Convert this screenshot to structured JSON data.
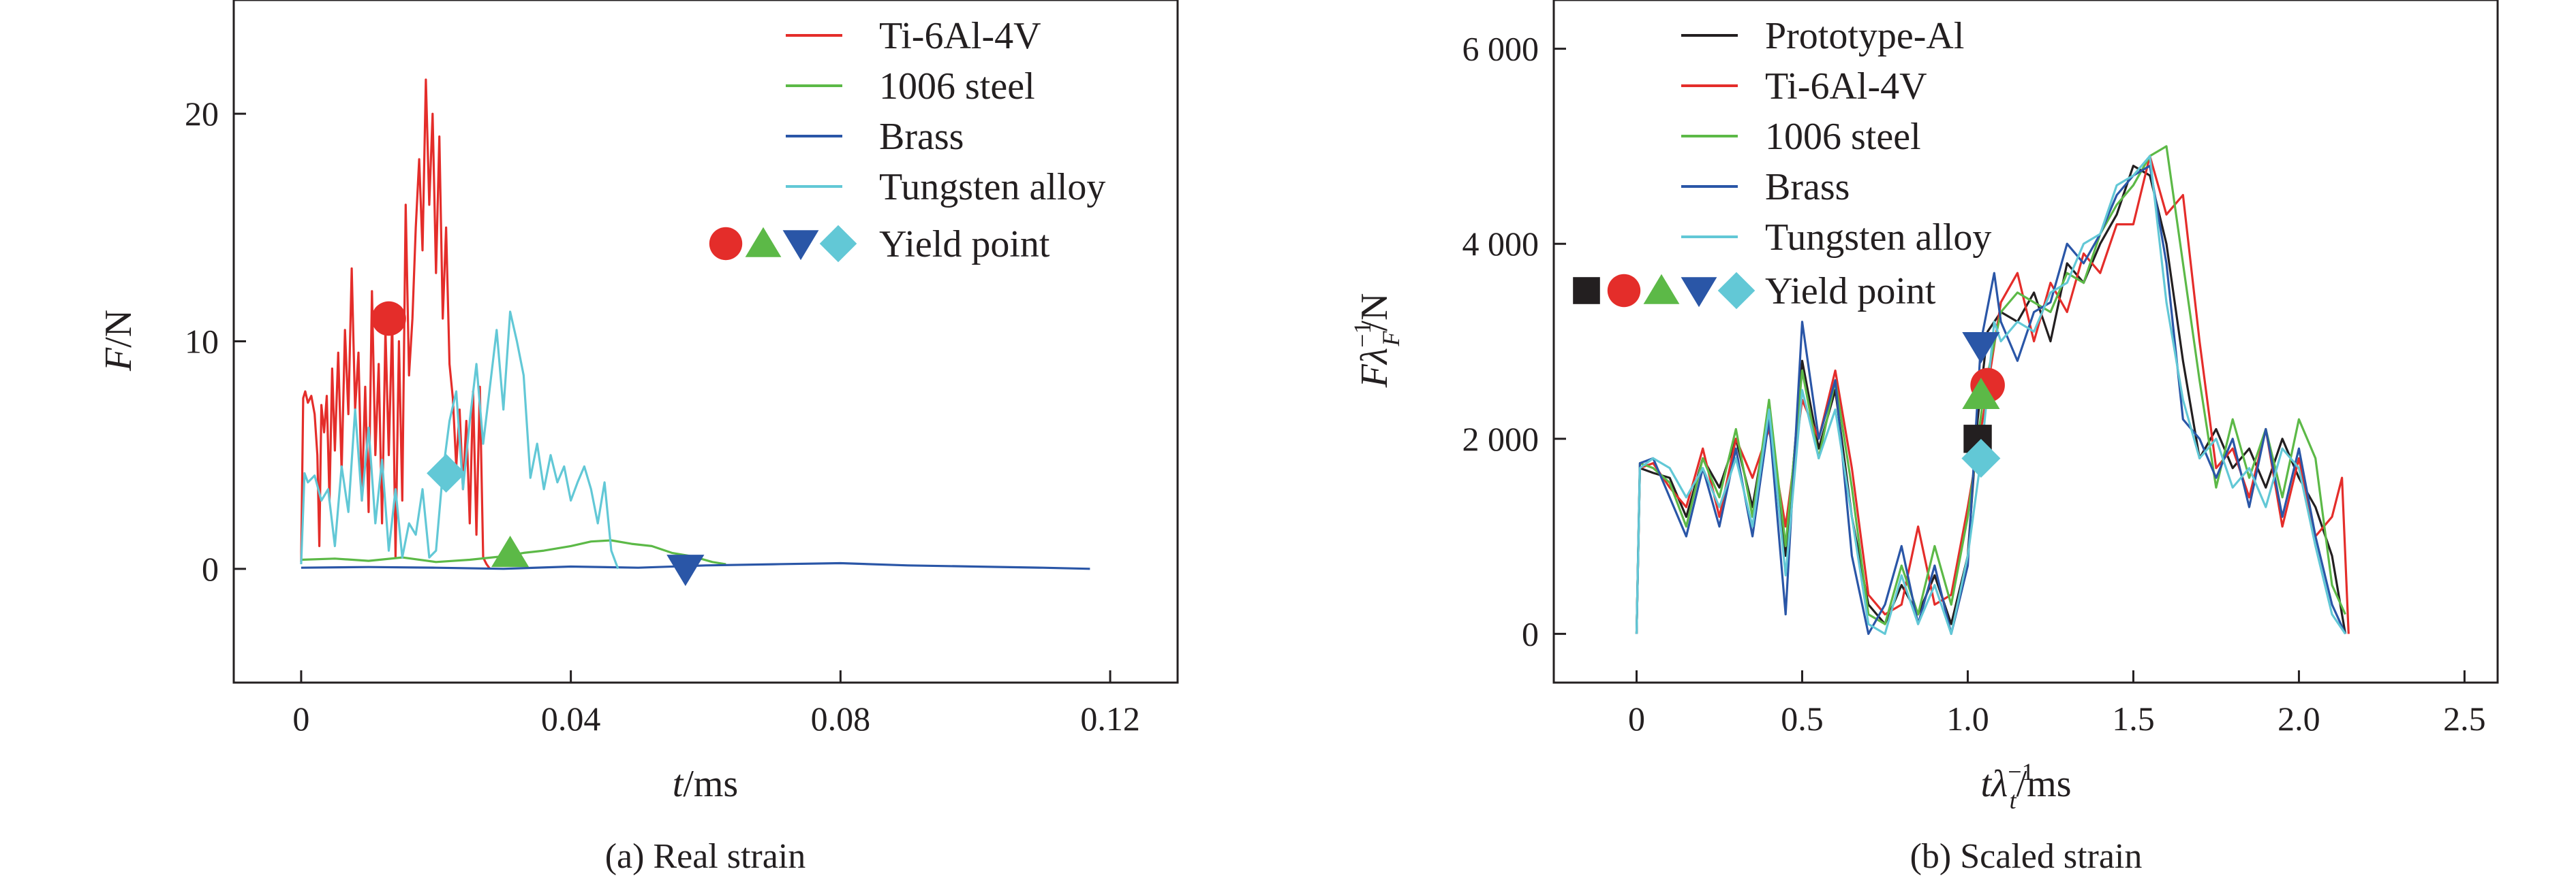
{
  "colors": {
    "Prototype-Al": "#231f20",
    "Ti-6Al-4V": "#e42d2a",
    "1006 steel": "#5cb947",
    "Brass": "#2a56a7",
    "Tungsten alloy": "#62c8d6"
  },
  "chart_data": [
    {
      "type": "line",
      "caption": "(a) Real strain",
      "xlabel": "t/ms",
      "ylabel": "F/N",
      "xlim": [
        -0.01,
        0.13
      ],
      "ylim": [
        -5,
        25
      ],
      "xticks": [
        0,
        0.04,
        0.08,
        0.12
      ],
      "xtick_labels": [
        "0",
        "0.04",
        "0.08",
        "0.12"
      ],
      "yticks": [
        0,
        10,
        20
      ],
      "ytick_labels": [
        "0",
        "10",
        "20"
      ],
      "legend_position": "top-right",
      "yield_label": "Yield point",
      "series": [
        {
          "name": "Ti-6Al-4V",
          "marker": "circle",
          "x": [
            0.0,
            0.0003,
            0.0006,
            0.001,
            0.0015,
            0.002,
            0.0024,
            0.0027,
            0.003,
            0.0034,
            0.0038,
            0.0042,
            0.0046,
            0.005,
            0.0055,
            0.006,
            0.0065,
            0.007,
            0.0075,
            0.008,
            0.0085,
            0.009,
            0.0095,
            0.01,
            0.0105,
            0.011,
            0.0115,
            0.012,
            0.0125,
            0.013,
            0.0135,
            0.014,
            0.0145,
            0.015,
            0.0155,
            0.016,
            0.0165,
            0.017,
            0.0175,
            0.018,
            0.0185,
            0.019,
            0.0195,
            0.02,
            0.0205,
            0.021,
            0.0215,
            0.022,
            0.0225,
            0.023,
            0.0235,
            0.024,
            0.0245,
            0.025,
            0.0255,
            0.026,
            0.0265,
            0.027,
            0.0275,
            0.028
          ],
          "y": [
            0.3,
            7.5,
            7.8,
            7.3,
            7.6,
            6.8,
            5.0,
            1.0,
            7.2,
            6.0,
            7.6,
            3.0,
            8.8,
            5.2,
            9.5,
            4.3,
            10.5,
            6.8,
            13.2,
            7.0,
            9.5,
            3.0,
            8.0,
            2.5,
            12.2,
            5.0,
            9.0,
            2.0,
            10.5,
            5.0,
            11.0,
            0.5,
            10.0,
            3.0,
            16.0,
            8.5,
            11.0,
            15.0,
            18.0,
            14.0,
            21.5,
            16.0,
            20.0,
            13.0,
            19.0,
            11.0,
            15.0,
            9.0,
            7.5,
            4.5,
            7.0,
            3.5,
            6.5,
            2.0,
            7.8,
            1.5,
            8.0,
            0.5,
            0.2,
            0.0
          ],
          "yield_x": 0.013,
          "yield_y": 11.0
        },
        {
          "name": "1006 steel",
          "marker": "triangle-up",
          "x": [
            0.0,
            0.005,
            0.01,
            0.015,
            0.02,
            0.025,
            0.03,
            0.033,
            0.036,
            0.04,
            0.043,
            0.046,
            0.049,
            0.052,
            0.055,
            0.058,
            0.061,
            0.063
          ],
          "y": [
            0.4,
            0.45,
            0.35,
            0.5,
            0.3,
            0.4,
            0.55,
            0.7,
            0.8,
            1.0,
            1.2,
            1.25,
            1.1,
            1.0,
            0.7,
            0.55,
            0.3,
            0.2
          ],
          "yield_x": 0.031,
          "yield_y": 0.7
        },
        {
          "name": "Brass",
          "marker": "triangle-down",
          "x": [
            0.0,
            0.01,
            0.02,
            0.03,
            0.04,
            0.05,
            0.06,
            0.07,
            0.08,
            0.09,
            0.1,
            0.11,
            0.117
          ],
          "y": [
            0.05,
            0.08,
            0.05,
            0.0,
            0.1,
            0.05,
            0.15,
            0.2,
            0.25,
            0.15,
            0.1,
            0.05,
            0.0
          ],
          "yield_x": 0.057,
          "yield_y": 0.0
        },
        {
          "name": "Tungsten alloy",
          "marker": "diamond",
          "x": [
            0.0,
            0.0005,
            0.001,
            0.002,
            0.003,
            0.004,
            0.005,
            0.006,
            0.007,
            0.008,
            0.009,
            0.01,
            0.011,
            0.012,
            0.013,
            0.014,
            0.015,
            0.016,
            0.017,
            0.018,
            0.019,
            0.02,
            0.021,
            0.022,
            0.023,
            0.024,
            0.025,
            0.026,
            0.027,
            0.028,
            0.029,
            0.03,
            0.031,
            0.032,
            0.033,
            0.034,
            0.035,
            0.036,
            0.037,
            0.038,
            0.039,
            0.04,
            0.041,
            0.042,
            0.043,
            0.044,
            0.045,
            0.046,
            0.047
          ],
          "y": [
            0.2,
            4.2,
            3.8,
            4.1,
            3.0,
            3.5,
            1.0,
            4.5,
            2.5,
            7.0,
            3.0,
            6.2,
            2.0,
            4.8,
            0.8,
            3.5,
            0.5,
            2.0,
            1.5,
            3.5,
            0.5,
            0.8,
            4.2,
            6.5,
            7.8,
            3.5,
            6.5,
            9.0,
            5.5,
            8.0,
            10.5,
            7.0,
            11.3,
            10.0,
            8.5,
            4.0,
            5.5,
            3.5,
            5.0,
            3.8,
            4.5,
            3.0,
            3.8,
            4.5,
            3.5,
            2.0,
            3.8,
            0.8,
            0.0
          ],
          "yield_x": 0.0215,
          "yield_y": 4.2
        }
      ]
    },
    {
      "type": "line",
      "caption": "(b) Scaled strain",
      "xlabel": "tλ_t^−1/ms",
      "ylabel": "Fλ_F^−1/N",
      "xlim": [
        -0.25,
        2.6
      ],
      "ylim": [
        -500,
        6500
      ],
      "xticks": [
        0,
        0.5,
        1.0,
        1.5,
        2.0,
        2.5
      ],
      "xtick_labels": [
        "0",
        "0.5",
        "1.0",
        "1.5",
        "2.0",
        "2.5"
      ],
      "yticks": [
        0,
        2000,
        4000,
        6000
      ],
      "ytick_labels": [
        "0",
        "2 000",
        "4 000",
        "6 000"
      ],
      "legend_position": "top-left",
      "yield_label": "Yield point",
      "series": [
        {
          "name": "Prototype-Al",
          "marker": "square",
          "x": [
            0.0,
            0.01,
            0.05,
            0.1,
            0.15,
            0.2,
            0.25,
            0.3,
            0.35,
            0.4,
            0.45,
            0.5,
            0.55,
            0.6,
            0.65,
            0.7,
            0.75,
            0.8,
            0.85,
            0.9,
            0.95,
            1.0,
            1.03,
            1.06,
            1.1,
            1.15,
            1.2,
            1.25,
            1.3,
            1.35,
            1.4,
            1.45,
            1.5,
            1.55,
            1.6,
            1.65,
            1.7,
            1.75,
            1.8,
            1.85,
            1.9,
            1.95,
            2.0,
            2.05,
            2.1,
            2.14
          ],
          "y": [
            0.0,
            1700,
            1650,
            1600,
            1200,
            1800,
            1500,
            2000,
            1300,
            2300,
            800,
            2800,
            1900,
            2500,
            1200,
            300,
            100,
            500,
            200,
            600,
            100,
            800,
            2200,
            3100,
            3300,
            3200,
            3500,
            3000,
            3800,
            3600,
            4000,
            4300,
            4800,
            4700,
            4000,
            2800,
            1800,
            2100,
            1700,
            1900,
            1500,
            2000,
            1600,
            1300,
            800,
            0
          ],
          "yield_x": 1.03,
          "yield_y": 2000
        },
        {
          "name": "Ti-6Al-4V",
          "marker": "circle",
          "x": [
            0.0,
            0.01,
            0.05,
            0.1,
            0.15,
            0.2,
            0.25,
            0.3,
            0.35,
            0.4,
            0.45,
            0.5,
            0.55,
            0.6,
            0.65,
            0.7,
            0.75,
            0.8,
            0.85,
            0.9,
            0.95,
            1.0,
            1.05,
            1.1,
            1.15,
            1.2,
            1.25,
            1.3,
            1.35,
            1.4,
            1.45,
            1.5,
            1.55,
            1.6,
            1.65,
            1.7,
            1.75,
            1.8,
            1.85,
            1.9,
            1.95,
            2.0,
            2.05,
            2.1,
            2.13,
            2.15
          ],
          "y": [
            0.0,
            1700,
            1750,
            1500,
            1300,
            1900,
            1200,
            2000,
            1600,
            2100,
            1100,
            2400,
            2000,
            2700,
            1700,
            400,
            200,
            300,
            1100,
            300,
            400,
            1300,
            2300,
            3400,
            3700,
            3000,
            3600,
            3300,
            3900,
            3700,
            4200,
            4200,
            4900,
            4300,
            4500,
            3000,
            1700,
            1900,
            1400,
            2100,
            1100,
            1800,
            1000,
            1200,
            1600,
            0
          ],
          "yield_x": 1.06,
          "yield_y": 2550
        },
        {
          "name": "1006 steel",
          "marker": "triangle-up",
          "x": [
            0.0,
            0.01,
            0.05,
            0.1,
            0.15,
            0.2,
            0.25,
            0.3,
            0.35,
            0.4,
            0.45,
            0.5,
            0.55,
            0.6,
            0.65,
            0.7,
            0.75,
            0.8,
            0.85,
            0.9,
            0.95,
            1.0,
            1.05,
            1.1,
            1.15,
            1.2,
            1.25,
            1.3,
            1.35,
            1.4,
            1.45,
            1.5,
            1.55,
            1.6,
            1.65,
            1.7,
            1.75,
            1.8,
            1.85,
            1.9,
            1.95,
            2.0,
            2.05,
            2.1,
            2.14
          ],
          "y": [
            0.0,
            1750,
            1700,
            1550,
            1100,
            1800,
            1400,
            2100,
            1200,
            2400,
            900,
            2700,
            1800,
            2600,
            1500,
            200,
            100,
            700,
            200,
            900,
            300,
            1200,
            2500,
            3300,
            3500,
            3400,
            3300,
            3700,
            3600,
            4100,
            4400,
            4600,
            4900,
            5000,
            3800,
            2600,
            1500,
            2200,
            1600,
            2100,
            1400,
            2200,
            1800,
            500,
            200
          ],
          "yield_x": 1.04,
          "yield_y": 2450
        },
        {
          "name": "Brass",
          "marker": "triangle-down",
          "x": [
            0.0,
            0.01,
            0.05,
            0.1,
            0.15,
            0.2,
            0.25,
            0.3,
            0.35,
            0.4,
            0.45,
            0.5,
            0.55,
            0.6,
            0.65,
            0.7,
            0.75,
            0.8,
            0.85,
            0.9,
            0.95,
            1.0,
            1.04,
            1.08,
            1.1,
            1.15,
            1.2,
            1.25,
            1.3,
            1.35,
            1.4,
            1.45,
            1.5,
            1.55,
            1.6,
            1.65,
            1.7,
            1.75,
            1.8,
            1.85,
            1.9,
            1.95,
            2.0,
            2.05,
            2.1,
            2.14
          ],
          "y": [
            0.0,
            1750,
            1800,
            1400,
            1000,
            1700,
            1100,
            1900,
            1000,
            2200,
            200,
            3200,
            2000,
            2600,
            800,
            0,
            300,
            900,
            100,
            700,
            0,
            700,
            3000,
            3700,
            3200,
            2800,
            3300,
            3400,
            4000,
            3800,
            4100,
            4500,
            4700,
            4800,
            3800,
            2200,
            2000,
            1600,
            2000,
            1300,
            2100,
            1200,
            1900,
            1000,
            300,
            0
          ],
          "yield_x": 1.04,
          "yield_y": 2950
        },
        {
          "name": "Tungsten alloy",
          "marker": "diamond",
          "x": [
            0.0,
            0.01,
            0.05,
            0.1,
            0.15,
            0.2,
            0.25,
            0.3,
            0.35,
            0.4,
            0.45,
            0.5,
            0.55,
            0.6,
            0.65,
            0.7,
            0.75,
            0.8,
            0.85,
            0.9,
            0.95,
            1.0,
            1.04,
            1.08,
            1.1,
            1.15,
            1.2,
            1.25,
            1.3,
            1.35,
            1.4,
            1.45,
            1.5,
            1.55,
            1.6,
            1.65,
            1.7,
            1.75,
            1.8,
            1.85,
            1.9,
            1.95,
            2.0,
            2.05,
            2.1,
            2.14
          ],
          "y": [
            0.0,
            1700,
            1800,
            1700,
            1400,
            1700,
            1300,
            1800,
            1100,
            2300,
            600,
            2500,
            1800,
            2300,
            1200,
            100,
            0,
            600,
            100,
            500,
            0,
            800,
            1800,
            3200,
            3000,
            3200,
            3100,
            3500,
            3600,
            4000,
            4100,
            4600,
            4700,
            4900,
            3400,
            2400,
            1800,
            2000,
            1500,
            1700,
            1300,
            1900,
            1700,
            900,
            200,
            0
          ],
          "yield_x": 1.04,
          "yield_y": 1800
        }
      ]
    }
  ]
}
